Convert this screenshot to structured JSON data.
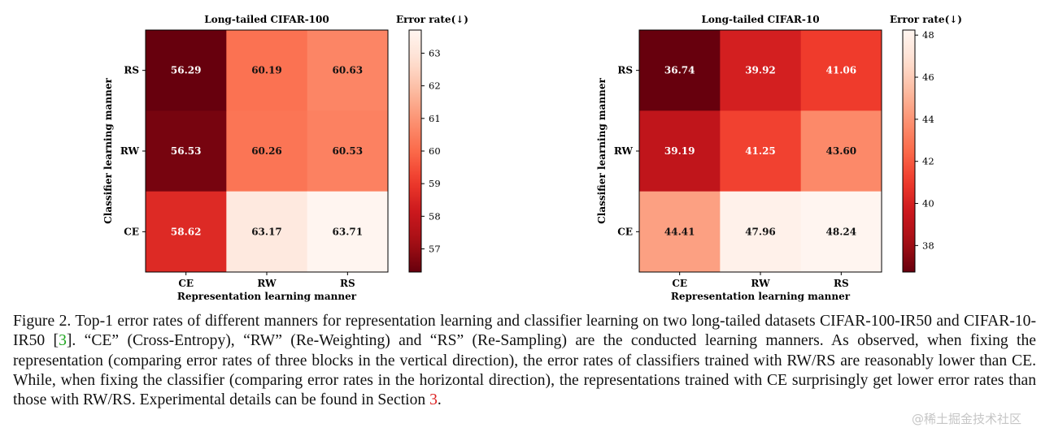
{
  "chart_data": [
    {
      "type": "heatmap",
      "title": "Long-tailed CIFAR-100",
      "xlabel": "Representation learning manner",
      "ylabel": "Classifier learning manner",
      "x_categories": [
        "CE",
        "RW",
        "RS"
      ],
      "y_categories": [
        "RS",
        "RW",
        "CE"
      ],
      "values": [
        [
          56.29,
          60.19,
          60.63
        ],
        [
          56.53,
          60.26,
          60.53
        ],
        [
          58.62,
          63.17,
          63.71
        ]
      ],
      "colorbar": {
        "label": "Error rate(↓)",
        "min": 56.29,
        "max": 63.71,
        "ticks": [
          57,
          58,
          59,
          60,
          61,
          62,
          63
        ],
        "colormap": "Reds"
      }
    },
    {
      "type": "heatmap",
      "title": "Long-tailed CIFAR-10",
      "xlabel": "Representation learning manner",
      "ylabel": "Classifier learning manner",
      "x_categories": [
        "CE",
        "RW",
        "RS"
      ],
      "y_categories": [
        "RS",
        "RW",
        "CE"
      ],
      "values": [
        [
          36.74,
          39.92,
          41.06
        ],
        [
          39.19,
          41.25,
          43.6
        ],
        [
          44.41,
          47.96,
          48.24
        ]
      ],
      "colorbar": {
        "label": "Error rate(↓)",
        "min": 36.74,
        "max": 48.24,
        "ticks": [
          38,
          40,
          42,
          44,
          46,
          48
        ],
        "colormap": "Reds"
      }
    }
  ],
  "caption": {
    "part1": "Figure 2. Top-1 error rates of different manners for representation learning and classifier learning on two long-tailed datasets CIFAR-100-IR50 and CIFAR-10-IR50 [",
    "ref1": "3",
    "part2": "]. “CE” (Cross-Entropy), “RW” (Re-Weighting) and “RS” (Re-Sampling) are the conducted learning manners. As observed, when fixing the representation (comparing error rates of three blocks in the vertical direction), the error rates of classifiers trained with RW/RS are reasonably lower than CE. While, when fixing the classifier (comparing error rates in the horizontal direction), the representations trained with CE surprisingly get lower error rates than those with RW/RS. Experimental details can be found in Section ",
    "ref2": "3",
    "part3": "."
  },
  "watermark": "@稀土掘金技术社区"
}
